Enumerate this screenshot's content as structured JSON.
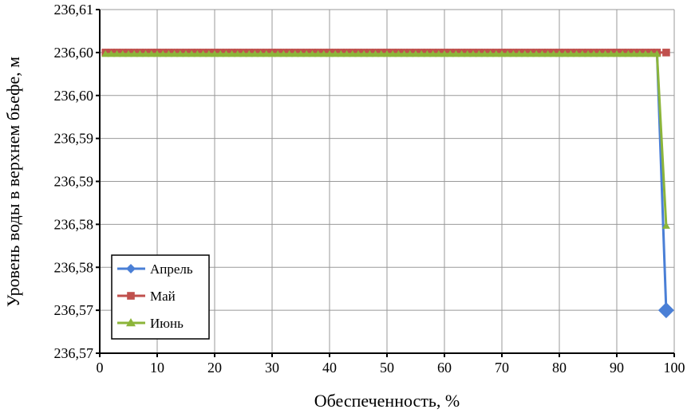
{
  "chart_data": {
    "type": "line",
    "title": "",
    "xlabel": "Обеспеченность, %",
    "ylabel": "Уровень воды в верхнем бьефе, м",
    "xlim": [
      0,
      100
    ],
    "ylim": [
      236.57,
      236.61
    ],
    "x_ticks": [
      "0",
      "10",
      "20",
      "30",
      "40",
      "50",
      "60",
      "70",
      "80",
      "90",
      "100"
    ],
    "x_tick_values": [
      0,
      10,
      20,
      30,
      40,
      50,
      60,
      70,
      80,
      90,
      100
    ],
    "y_ticks": [
      "236,57",
      "236,57",
      "236,58",
      "236,58",
      "236,59",
      "236,59",
      "236,60",
      "236,60",
      "236,61"
    ],
    "y_tick_values": [
      236.57,
      236.575,
      236.58,
      236.585,
      236.59,
      236.595,
      236.6,
      236.605,
      236.61
    ],
    "grid": true,
    "legend_placement": "bottom-left",
    "series": [
      {
        "name": "Апрель",
        "color": "#4a7fd6",
        "marker": "diamond",
        "flat_value": 236.605,
        "flat_x_range": [
          1,
          97
        ],
        "tail": [
          [
            98.6,
            236.575
          ]
        ]
      },
      {
        "name": "Май",
        "color": "#c0504d",
        "marker": "square",
        "flat_value": 236.605,
        "flat_x_range": [
          1,
          97
        ],
        "tail": [
          [
            98.6,
            236.605
          ]
        ]
      },
      {
        "name": "Июнь",
        "color": "#8cb53a",
        "marker": "triangle",
        "flat_value": 236.605,
        "flat_x_range": [
          1,
          97
        ],
        "tail": [
          [
            98.6,
            236.585
          ]
        ]
      }
    ]
  }
}
